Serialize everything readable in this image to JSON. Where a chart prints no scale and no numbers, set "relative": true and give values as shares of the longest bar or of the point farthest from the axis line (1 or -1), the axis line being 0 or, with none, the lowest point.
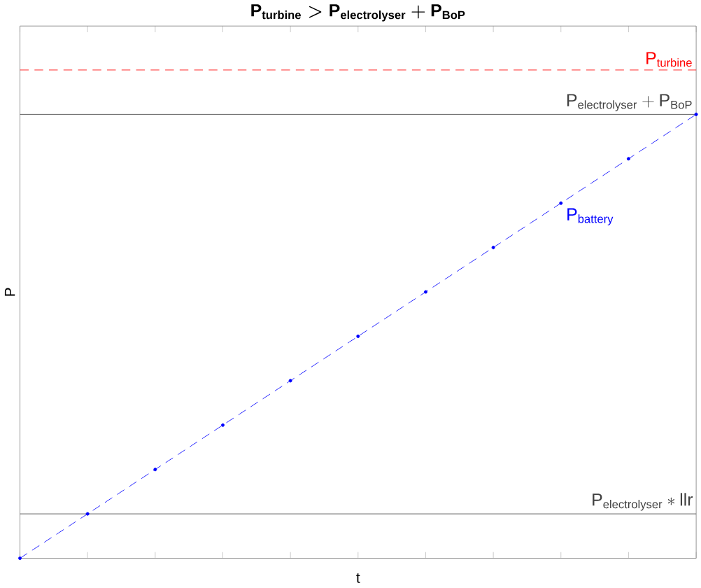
{
  "chart_data": {
    "type": "line",
    "title": "\\mathbf{P}_{\\mathbf{turbine}} > \\mathbf{P}_{\\mathbf{electrolyser}} + \\mathbf{P}_{\\mathbf{BoP}}",
    "xlabel": "t",
    "ylabel": "P",
    "relative": true,
    "categories": [
      null,
      null,
      null,
      null,
      null,
      null,
      null,
      null,
      null,
      null,
      null
    ],
    "series": [
      {
        "name": "P$_{battery}$",
        "color": "#0000ff",
        "values": [
          0,
          0.1,
          0.2,
          0.3,
          0.4,
          0.5,
          0.6,
          0.7,
          0.8,
          0.9,
          1.0
        ]
      }
    ],
    "marker": "circle",
    "line_style": "dashed",
    "ref_lines": [
      {
        "axis": "y",
        "value": 1.1,
        "label": "\\mathrm{P}_{\\mathrm{turbine}}",
        "color": "#ff0000",
        "line_style": "dashed"
      },
      {
        "axis": "y",
        "value": 1.0,
        "label": "\\mathrm{P}_{\\mathrm{electrolyser}} + \\mathrm{P}_{\\mathrm{BoP}}",
        "color": "#404040",
        "line_style": "solid"
      },
      {
        "axis": "y",
        "value": 0.1,
        "label": "\\mathrm{P}_{\\mathrm{electrolyser}} * \\mathrm{llr}",
        "color": "#404040",
        "line_style": "solid"
      }
    ]
  }
}
